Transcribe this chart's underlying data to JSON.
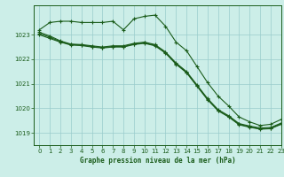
{
  "title": "Graphe pression niveau de la mer (hPa)",
  "bg_color": "#cceee8",
  "grid_color": "#99cccc",
  "line_color": "#1a5c1a",
  "xlim": [
    -0.5,
    23
  ],
  "ylim": [
    1018.5,
    1024.2
  ],
  "yticks": [
    1019,
    1020,
    1021,
    1022,
    1023
  ],
  "xticks": [
    0,
    1,
    2,
    3,
    4,
    5,
    6,
    7,
    8,
    9,
    10,
    11,
    12,
    13,
    14,
    15,
    16,
    17,
    18,
    19,
    20,
    21,
    22,
    23
  ],
  "series": [
    [
      1023.2,
      1023.5,
      1023.55,
      1023.55,
      1023.5,
      1023.5,
      1023.5,
      1023.55,
      1023.2,
      1023.65,
      1023.75,
      1023.8,
      1023.35,
      1022.7,
      1022.35,
      1021.7,
      1021.05,
      1020.5,
      1020.1,
      1019.65,
      1019.45,
      1019.3,
      1019.35,
      1019.55
    ],
    [
      1023.1,
      1022.95,
      1022.75,
      1022.62,
      1022.6,
      1022.55,
      1022.5,
      1022.55,
      1022.55,
      1022.65,
      1022.7,
      1022.6,
      1022.3,
      1021.85,
      1021.5,
      1020.95,
      1020.4,
      1019.95,
      1019.7,
      1019.38,
      1019.28,
      1019.2,
      1019.22,
      1019.4
    ],
    [
      1023.05,
      1022.9,
      1022.72,
      1022.6,
      1022.58,
      1022.52,
      1022.48,
      1022.52,
      1022.52,
      1022.62,
      1022.67,
      1022.57,
      1022.27,
      1021.82,
      1021.47,
      1020.92,
      1020.37,
      1019.92,
      1019.67,
      1019.35,
      1019.25,
      1019.17,
      1019.19,
      1019.37
    ],
    [
      1023.0,
      1022.85,
      1022.7,
      1022.58,
      1022.56,
      1022.5,
      1022.46,
      1022.5,
      1022.5,
      1022.6,
      1022.65,
      1022.55,
      1022.25,
      1021.8,
      1021.45,
      1020.9,
      1020.35,
      1019.9,
      1019.65,
      1019.33,
      1019.23,
      1019.15,
      1019.17,
      1019.35
    ]
  ]
}
